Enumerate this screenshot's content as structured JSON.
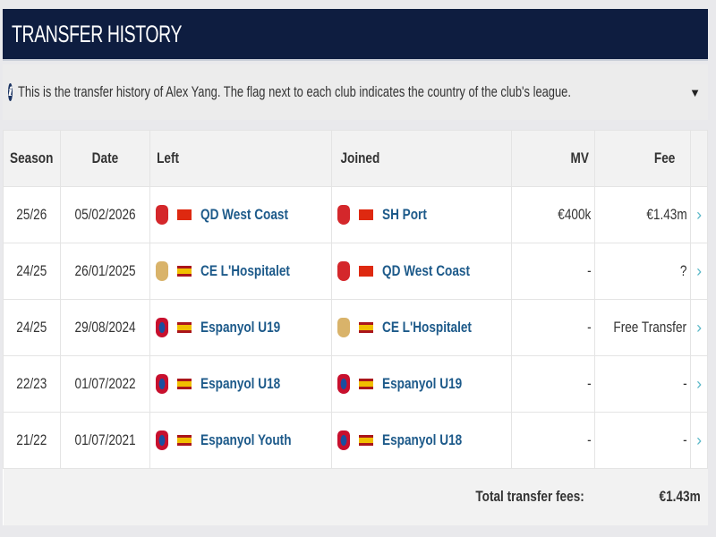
{
  "title": "TRANSFER HISTORY",
  "info": "This is the transfer history of Alex Yang. The flag next to each club indicates the country of the club's league.",
  "columns": {
    "season": "Season",
    "date": "Date",
    "left": "Left",
    "joined": "Joined",
    "mv": "MV",
    "fee": "Fee"
  },
  "rows": [
    {
      "season": "25/26",
      "date": "05/02/2026",
      "left": "QD West Coast",
      "left_flag": "china",
      "joined": "SH Port",
      "joined_flag": "china",
      "mv": "€400k",
      "fee": "€1.43m"
    },
    {
      "season": "24/25",
      "date": "26/01/2025",
      "left": "CE L'Hospitalet",
      "left_flag": "spain",
      "joined": "QD West Coast",
      "joined_flag": "china",
      "mv": "-",
      "fee": "?"
    },
    {
      "season": "24/25",
      "date": "29/08/2024",
      "left": "Espanyol U19",
      "left_flag": "spain",
      "joined": "CE L'Hospitalet",
      "joined_flag": "spain",
      "mv": "-",
      "fee": "Free Transfer"
    },
    {
      "season": "22/23",
      "date": "01/07/2022",
      "left": "Espanyol U18",
      "left_flag": "spain",
      "joined": "Espanyol U19",
      "joined_flag": "spain",
      "mv": "-",
      "fee": "-"
    },
    {
      "season": "21/22",
      "date": "01/07/2021",
      "left": "Espanyol Youth",
      "left_flag": "spain",
      "joined": "Espanyol U18",
      "joined_flag": "spain",
      "mv": "-",
      "fee": "-"
    }
  ],
  "total": {
    "label": "Total transfer fees:",
    "value": "€1.43m"
  }
}
